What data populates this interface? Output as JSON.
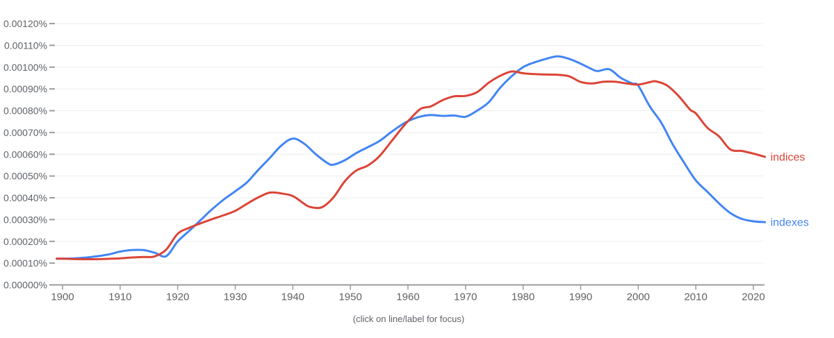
{
  "caption": "(click on line/label for focus)",
  "colors": {
    "indices_red": "#db4437",
    "indexes_blue": "#4285f4",
    "axis": "#9b9b9b",
    "grid": "#eeeeee",
    "tick_label": "#5f6368",
    "year_label": "#616161"
  },
  "chart_data": {
    "type": "line",
    "title": "",
    "xlabel": "",
    "ylabel": "",
    "grid": true,
    "legend_position": "end-of-line-labels",
    "x_axis": {
      "range": [
        1899,
        2022
      ],
      "tick_values": [
        1900,
        1910,
        1920,
        1930,
        1940,
        1950,
        1960,
        1970,
        1980,
        1990,
        2000,
        2010,
        2020
      ],
      "tick_labels": [
        "1900",
        "1910",
        "1920",
        "1930",
        "1940",
        "1950",
        "1960",
        "1970",
        "1980",
        "1990",
        "2000",
        "2010",
        "2020"
      ]
    },
    "y_axis": {
      "range_percent": [
        0,
        0.0012
      ],
      "tick_values_percent": [
        0.0012,
        0.0011,
        0.001,
        0.0009,
        0.0008,
        0.0007,
        0.0006,
        0.0005,
        0.0004,
        0.0003,
        0.0002,
        0.0001,
        0
      ],
      "tick_labels": [
        "0.00120%",
        "0.00110%",
        "0.00100%",
        "0.00090%",
        "0.00080%",
        "0.00070%",
        "0.00060%",
        "0.00050%",
        "0.00040%",
        "0.00030%",
        "0.00020%",
        "0.00010%",
        "0.00000%"
      ]
    },
    "series": [
      {
        "name": "indexes",
        "color": "#4285f4",
        "points": [
          [
            1899,
            0.00012
          ],
          [
            1902,
            0.000122
          ],
          [
            1905,
            0.000128
          ],
          [
            1908,
            0.00014
          ],
          [
            1910,
            0.000153
          ],
          [
            1912,
            0.00016
          ],
          [
            1914,
            0.00016
          ],
          [
            1916,
            0.000148
          ],
          [
            1918,
            0.000132
          ],
          [
            1920,
            0.0002
          ],
          [
            1922,
            0.000248
          ],
          [
            1924,
            0.000298
          ],
          [
            1926,
            0.000348
          ],
          [
            1928,
            0.000392
          ],
          [
            1930,
            0.00043
          ],
          [
            1932,
            0.00047
          ],
          [
            1934,
            0.000528
          ],
          [
            1936,
            0.000583
          ],
          [
            1938,
            0.00064
          ],
          [
            1940,
            0.000672
          ],
          [
            1942,
            0.000648
          ],
          [
            1944,
            0.0006
          ],
          [
            1946,
            0.00056
          ],
          [
            1947,
            0.000552
          ],
          [
            1949,
            0.000572
          ],
          [
            1951,
            0.000605
          ],
          [
            1953,
            0.000632
          ],
          [
            1955,
            0.00066
          ],
          [
            1957,
            0.0007
          ],
          [
            1959,
            0.000737
          ],
          [
            1960,
            0.000752
          ],
          [
            1962,
            0.000772
          ],
          [
            1964,
            0.00078
          ],
          [
            1966,
            0.000776
          ],
          [
            1968,
            0.000778
          ],
          [
            1970,
            0.000772
          ],
          [
            1972,
            0.0008
          ],
          [
            1974,
            0.000838
          ],
          [
            1976,
            0.000905
          ],
          [
            1978,
            0.000958
          ],
          [
            1980,
            0.001
          ],
          [
            1982,
            0.001022
          ],
          [
            1984,
            0.001038
          ],
          [
            1986,
            0.00105
          ],
          [
            1988,
            0.001038
          ],
          [
            1990,
            0.001016
          ],
          [
            1992,
            0.00099
          ],
          [
            1993,
            0.000982
          ],
          [
            1995,
            0.00099
          ],
          [
            1997,
            0.00095
          ],
          [
            1999,
            0.000925
          ],
          [
            2000,
            0.000915
          ],
          [
            2002,
            0.00082
          ],
          [
            2004,
            0.000745
          ],
          [
            2006,
            0.000645
          ],
          [
            2008,
            0.00056
          ],
          [
            2010,
            0.00048
          ],
          [
            2012,
            0.000428
          ],
          [
            2014,
            0.000375
          ],
          [
            2016,
            0.00033
          ],
          [
            2018,
            0.000303
          ],
          [
            2020,
            0.000292
          ],
          [
            2022,
            0.000288
          ]
        ]
      },
      {
        "name": "indices",
        "color": "#db4437",
        "points": [
          [
            1899,
            0.000121
          ],
          [
            1902,
            0.000119
          ],
          [
            1905,
            0.000118
          ],
          [
            1908,
            0.00012
          ],
          [
            1910,
            0.000122
          ],
          [
            1912,
            0.000126
          ],
          [
            1914,
            0.000128
          ],
          [
            1916,
            0.000131
          ],
          [
            1918,
            0.000162
          ],
          [
            1920,
            0.000235
          ],
          [
            1922,
            0.000262
          ],
          [
            1924,
            0.000283
          ],
          [
            1926,
            0.000302
          ],
          [
            1928,
            0.00032
          ],
          [
            1930,
            0.00034
          ],
          [
            1932,
            0.000372
          ],
          [
            1934,
            0.000402
          ],
          [
            1936,
            0.000424
          ],
          [
            1938,
            0.00042
          ],
          [
            1940,
            0.000408
          ],
          [
            1942,
            0.000372
          ],
          [
            1943,
            0.000358
          ],
          [
            1945,
            0.000356
          ],
          [
            1947,
            0.0004
          ],
          [
            1949,
            0.000475
          ],
          [
            1951,
            0.000525
          ],
          [
            1953,
            0.000548
          ],
          [
            1955,
            0.00059
          ],
          [
            1957,
            0.000655
          ],
          [
            1959,
            0.000722
          ],
          [
            1960,
            0.000752
          ],
          [
            1962,
            0.000805
          ],
          [
            1963,
            0.000815
          ],
          [
            1964,
            0.00082
          ],
          [
            1966,
            0.000848
          ],
          [
            1968,
            0.000866
          ],
          [
            1970,
            0.000868
          ],
          [
            1972,
            0.000885
          ],
          [
            1974,
            0.000928
          ],
          [
            1976,
            0.00096
          ],
          [
            1978,
            0.00098
          ],
          [
            1980,
            0.000972
          ],
          [
            1982,
            0.000968
          ],
          [
            1984,
            0.000966
          ],
          [
            1986,
            0.000965
          ],
          [
            1988,
            0.000958
          ],
          [
            1990,
            0.000932
          ],
          [
            1992,
            0.000925
          ],
          [
            1994,
            0.000933
          ],
          [
            1996,
            0.000933
          ],
          [
            1998,
            0.000925
          ],
          [
            2000,
            0.00092
          ],
          [
            2002,
            0.000931
          ],
          [
            2003,
            0.000935
          ],
          [
            2005,
            0.000916
          ],
          [
            2007,
            0.000868
          ],
          [
            2009,
            0.000805
          ],
          [
            2010,
            0.000788
          ],
          [
            2012,
            0.000722
          ],
          [
            2014,
            0.000683
          ],
          [
            2016,
            0.000622
          ],
          [
            2018,
            0.000615
          ],
          [
            2020,
            0.000603
          ],
          [
            2022,
            0.000588
          ]
        ]
      }
    ]
  }
}
